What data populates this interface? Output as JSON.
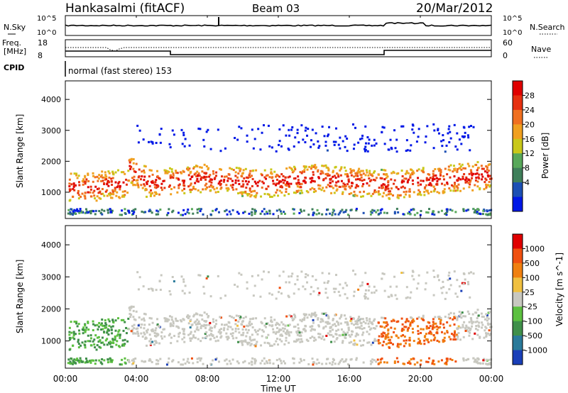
{
  "header": {
    "station": "Hankasalmi (fitACF)",
    "beam": "Beam 03",
    "date": "20/Mar/2012"
  },
  "top_panels": {
    "nsky_label": "N.Sky",
    "nsky_ticks": [
      "10^5",
      "10^0"
    ],
    "nsearch_label": "N.Search",
    "nsearch_ticks": [
      "10^5",
      "10^0"
    ],
    "freq_label_1": "Freq.",
    "freq_label_2": "[MHz]",
    "freq_ticks": [
      "18",
      "8"
    ],
    "nave_label": "Nave",
    "nave_ticks": [
      "60",
      "0"
    ],
    "cpid_label": "CPID",
    "cpid_text": "normal (fast stereo) 153"
  },
  "chart_data": [
    {
      "type": "heatmap",
      "name": "power-panel",
      "ylabel": "Slant Range [km]",
      "yticks": [
        1000,
        2000,
        3000,
        4000
      ],
      "ylim": [
        150,
        4600
      ],
      "colorbar_label": "Power [dB]",
      "colorbar_ticks": [
        "28",
        "24",
        "20",
        "16",
        "12",
        "8",
        "4"
      ],
      "colors": [
        "#0018e6",
        "#1c4fb4",
        "#3f7f5a",
        "#58a85a",
        "#c9c81a",
        "#f0a020",
        "#f07020",
        "#e63010",
        "#e00000"
      ]
    },
    {
      "type": "heatmap",
      "name": "velocity-panel",
      "ylabel": "Slant Range [km]",
      "yticks": [
        1000,
        2000,
        3000,
        4000
      ],
      "ylim": [
        150,
        4600
      ],
      "colorbar_label": "Velocity [m s^-1]",
      "colorbar_ticks": [
        "1000",
        "500",
        "100",
        "25",
        "-25",
        "-100",
        "-500",
        "-1000"
      ],
      "colors": [
        "#1a3fb8",
        "#2a7a9a",
        "#3f8f4a",
        "#5cc040",
        "#c8c8c0",
        "#f0c040",
        "#f08010",
        "#f05010",
        "#e00000"
      ]
    }
  ],
  "time_axis": {
    "ticks": [
      "00:00",
      "04:00",
      "08:00",
      "12:00",
      "16:00",
      "20:00",
      "00:00"
    ],
    "label": "Time UT"
  }
}
